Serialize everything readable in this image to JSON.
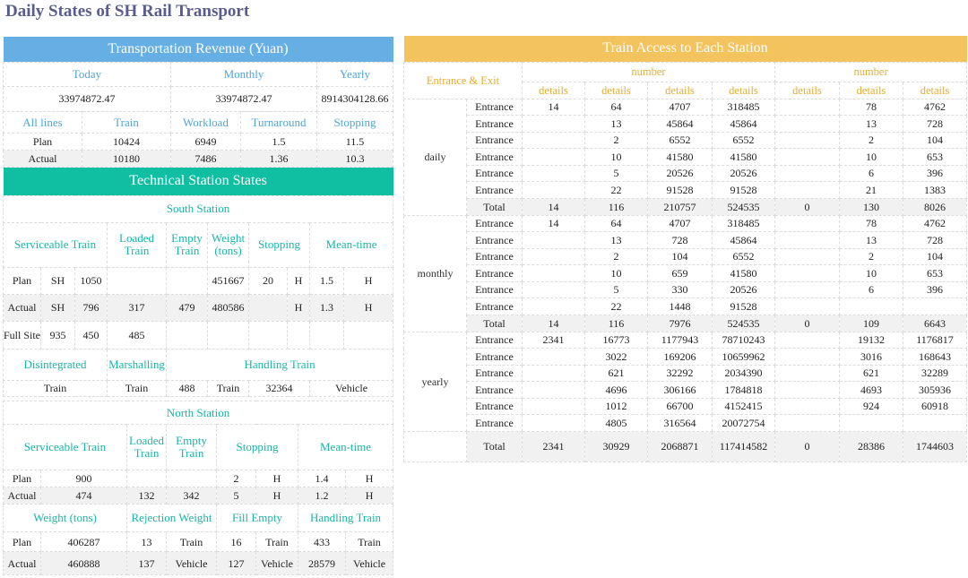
{
  "title": "Daily States of SH Rail Transport",
  "revenue": {
    "banner": "Transportation Revenue (Yuan)",
    "headers": [
      "Today",
      "Monthly",
      "Yearly"
    ],
    "values": [
      "33974872.47",
      "33974872.47",
      "8914304128.66"
    ]
  },
  "lines": {
    "headers": [
      "All lines",
      "Train",
      "Workload",
      "Turnaround",
      "Stopping"
    ],
    "rows": [
      [
        "Plan",
        "10424",
        "6949",
        "1.5",
        "11.5"
      ],
      [
        "Actual",
        "10180",
        "7486",
        "1.36",
        "10.3"
      ]
    ]
  },
  "tech": {
    "banner": "Technical Station States",
    "south": {
      "title": "South Station",
      "headers": [
        "Serviceable Train",
        "Loaded Train",
        "Empty Train",
        "Weight (tons)",
        "Stopping",
        "Mean-time"
      ],
      "plan": [
        "Plan",
        "SH",
        "1050",
        "",
        "",
        "451667",
        "20",
        "H",
        "1.5",
        "H"
      ],
      "actual": [
        "Actual",
        "SH",
        "796",
        "317",
        "479",
        "480586",
        "",
        "H",
        "1.3",
        "H"
      ],
      "full": [
        "Full Site",
        "935",
        "450",
        "485"
      ],
      "headers2": [
        "Disintegrated",
        "Marshalling",
        "Handling Train"
      ],
      "row2": [
        "Train",
        "Train",
        "488",
        "Train",
        "32364",
        "Vehicle"
      ]
    },
    "north": {
      "title": "North Station",
      "headers": [
        "Serviceable Train",
        "Loaded Train",
        "Empty Train",
        "Stopping",
        "Mean-time"
      ],
      "plan": [
        "Plan",
        "900",
        "",
        "",
        "2",
        "H",
        "1.4",
        "H"
      ],
      "actual": [
        "Actual",
        "474",
        "132",
        "342",
        "5",
        "H",
        "1.2",
        "H"
      ],
      "headers2": [
        "Weight (tons)",
        "Rejection Weight",
        "Fill Empty",
        "Handling Train"
      ],
      "plan2": [
        "Plan",
        "406287",
        "13",
        "Train",
        "16",
        "Train",
        "433",
        "Train"
      ],
      "actual2": [
        "Actual",
        "460888",
        "137",
        "Vehicle",
        "127",
        "Vehicle",
        "28579",
        "Vehicle"
      ]
    }
  },
  "access": {
    "banner": "Train Access to Each Station",
    "col_group": "Entrance & Exit",
    "number_label_1": "number",
    "number_label_2": "number",
    "details": [
      "details",
      "details",
      "details",
      "details",
      "details",
      "details",
      "details"
    ],
    "groups": [
      {
        "label": "daily",
        "rows": [
          [
            "Entrance",
            "14",
            "64",
            "4707",
            "318485",
            "",
            "78",
            "4762"
          ],
          [
            "Entrance",
            "",
            "13",
            "45864",
            "45864",
            "",
            "13",
            "728"
          ],
          [
            "Entrance",
            "",
            "2",
            "6552",
            "6552",
            "",
            "2",
            "104"
          ],
          [
            "Entrance",
            "",
            "10",
            "41580",
            "41580",
            "",
            "10",
            "653"
          ],
          [
            "Entrance",
            "",
            "5",
            "20526",
            "20526",
            "",
            "6",
            "396"
          ],
          [
            "Entrance",
            "",
            "22",
            "91528",
            "91528",
            "",
            "21",
            "1383"
          ]
        ],
        "total": [
          "Total",
          "14",
          "116",
          "210757",
          "524535",
          "0",
          "130",
          "8026"
        ]
      },
      {
        "label": "monthly",
        "rows": [
          [
            "Entrance",
            "14",
            "64",
            "4707",
            "318485",
            "",
            "78",
            "4762"
          ],
          [
            "Entrance",
            "",
            "13",
            "728",
            "45864",
            "",
            "13",
            "728"
          ],
          [
            "Entrance",
            "",
            "2",
            "104",
            "6552",
            "",
            "2",
            "104"
          ],
          [
            "Entrance",
            "",
            "10",
            "659",
            "41580",
            "",
            "10",
            "653"
          ],
          [
            "Entrance",
            "",
            "5",
            "330",
            "20526",
            "",
            "6",
            "396"
          ],
          [
            "Entrance",
            "",
            "22",
            "1448",
            "91528",
            "",
            "",
            ""
          ]
        ],
        "total": [
          "Total",
          "14",
          "116",
          "7976",
          "524535",
          "0",
          "109",
          "6643"
        ]
      },
      {
        "label": "yearly",
        "rows": [
          [
            "Entrance",
            "2341",
            "16773",
            "1177943",
            "78710243",
            "",
            "19132",
            "1176817"
          ],
          [
            "Entrance",
            "",
            "3022",
            "169206",
            "10659962",
            "",
            "3016",
            "168643"
          ],
          [
            "Entrance",
            "",
            "621",
            "32292",
            "2034390",
            "",
            "621",
            "32289"
          ],
          [
            "Entrance",
            "",
            "4696",
            "306166",
            "1784818",
            "",
            "4693",
            "305936"
          ],
          [
            "Entrance",
            "",
            "1012",
            "66700",
            "4152415",
            "",
            "924",
            "60918"
          ],
          [
            "Entrance",
            "",
            "4805",
            "316564",
            "20072754",
            "",
            "",
            ""
          ]
        ],
        "total": [
          "Total",
          "2341",
          "30929",
          "2068871",
          "117414582",
          "0",
          "28386",
          "1744603"
        ]
      }
    ]
  }
}
